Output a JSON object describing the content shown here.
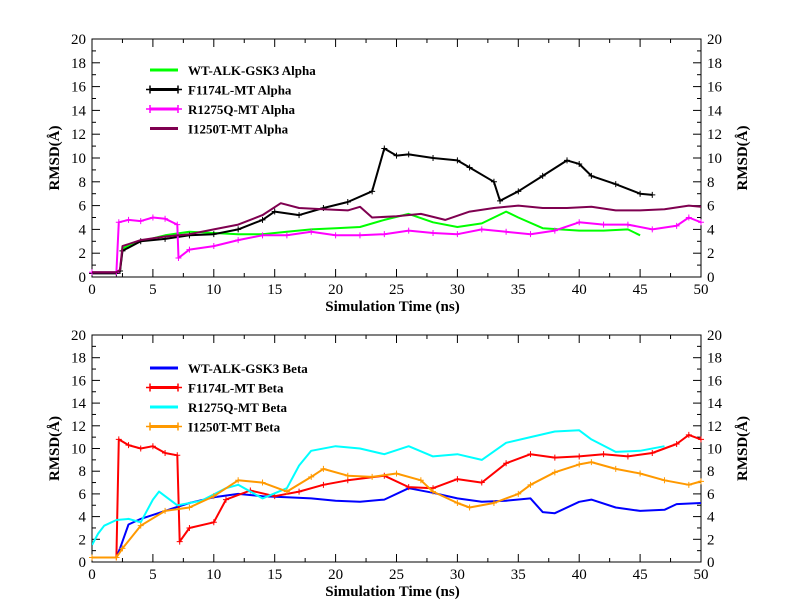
{
  "chart_data": [
    {
      "type": "line",
      "xlabel": "Simulation Time (ns)",
      "ylabel": "RMSD(Å)",
      "ylabel_right": "RMSD(Å)",
      "xlim": [
        0,
        50
      ],
      "ylim": [
        0,
        20
      ],
      "xticks": [
        0,
        5,
        10,
        15,
        20,
        25,
        30,
        35,
        40,
        45,
        50
      ],
      "yticks": [
        0,
        2,
        4,
        6,
        8,
        10,
        12,
        14,
        16,
        18,
        20
      ],
      "grid": false,
      "legend_position": "top-left",
      "series": [
        {
          "name": "WT-ALK-GSK3 Alpha",
          "color": "#00ff00",
          "marker": "none",
          "points": [
            [
              0,
              0.4
            ],
            [
              2,
              0.4
            ],
            [
              2.3,
              0.5
            ],
            [
              2.5,
              2.4
            ],
            [
              4,
              3.0
            ],
            [
              6,
              3.5
            ],
            [
              8,
              3.8
            ],
            [
              10,
              3.7
            ],
            [
              12,
              3.6
            ],
            [
              14,
              3.6
            ],
            [
              16,
              3.8
            ],
            [
              18,
              4.0
            ],
            [
              20,
              4.1
            ],
            [
              22,
              4.2
            ],
            [
              24,
              4.8
            ],
            [
              26,
              5.3
            ],
            [
              28,
              4.6
            ],
            [
              30,
              4.2
            ],
            [
              32,
              4.5
            ],
            [
              34,
              5.5
            ],
            [
              35,
              5.0
            ],
            [
              37,
              4.1
            ],
            [
              40,
              3.9
            ],
            [
              42,
              3.9
            ],
            [
              44,
              4.0
            ],
            [
              45,
              3.5
            ]
          ]
        },
        {
          "name": "F1174L-MT Alpha",
          "color": "#000000",
          "marker": "+",
          "points": [
            [
              0,
              0.3
            ],
            [
              2,
              0.3
            ],
            [
              2.3,
              0.5
            ],
            [
              2.5,
              2.2
            ],
            [
              4,
              3.0
            ],
            [
              6,
              3.2
            ],
            [
              8,
              3.5
            ],
            [
              10,
              3.6
            ],
            [
              12,
              4.0
            ],
            [
              14,
              4.8
            ],
            [
              15,
              5.5
            ],
            [
              17,
              5.2
            ],
            [
              19,
              5.8
            ],
            [
              21,
              6.3
            ],
            [
              23,
              7.2
            ],
            [
              24,
              10.8
            ],
            [
              25,
              10.2
            ],
            [
              26,
              10.3
            ],
            [
              28,
              10.0
            ],
            [
              30,
              9.8
            ],
            [
              31,
              9.2
            ],
            [
              33,
              8.0
            ],
            [
              33.5,
              6.4
            ],
            [
              35,
              7.2
            ],
            [
              37,
              8.5
            ],
            [
              39,
              9.8
            ],
            [
              40,
              9.5
            ],
            [
              41,
              8.5
            ],
            [
              43,
              7.8
            ],
            [
              45,
              7.0
            ],
            [
              46,
              6.9
            ]
          ]
        },
        {
          "name": "R1275Q-MT Alpha",
          "color": "#ff00ff",
          "marker": "+",
          "points": [
            [
              0,
              0.4
            ],
            [
              2,
              0.4
            ],
            [
              2.2,
              4.6
            ],
            [
              3,
              4.8
            ],
            [
              4,
              4.7
            ],
            [
              5,
              5.0
            ],
            [
              6,
              4.9
            ],
            [
              7,
              4.4
            ],
            [
              7.1,
              1.6
            ],
            [
              8,
              2.3
            ],
            [
              10,
              2.6
            ],
            [
              12,
              3.1
            ],
            [
              14,
              3.5
            ],
            [
              16,
              3.5
            ],
            [
              18,
              3.8
            ],
            [
              20,
              3.5
            ],
            [
              22,
              3.5
            ],
            [
              24,
              3.6
            ],
            [
              26,
              3.9
            ],
            [
              28,
              3.7
            ],
            [
              30,
              3.6
            ],
            [
              32,
              4.0
            ],
            [
              34,
              3.8
            ],
            [
              36,
              3.6
            ],
            [
              38,
              3.9
            ],
            [
              40,
              4.6
            ],
            [
              42,
              4.4
            ],
            [
              44,
              4.4
            ],
            [
              46,
              4.0
            ],
            [
              48,
              4.3
            ],
            [
              49,
              5.0
            ],
            [
              50,
              4.6
            ]
          ]
        },
        {
          "name": "I1250T-MT Alpha",
          "color": "#7f0050",
          "marker": "none",
          "points": [
            [
              0,
              0.4
            ],
            [
              2,
              0.4
            ],
            [
              2.3,
              0.6
            ],
            [
              2.5,
              2.6
            ],
            [
              4,
              3.1
            ],
            [
              6,
              3.4
            ],
            [
              8,
              3.6
            ],
            [
              10,
              4.0
            ],
            [
              12,
              4.4
            ],
            [
              14,
              5.2
            ],
            [
              15.5,
              6.2
            ],
            [
              17,
              5.8
            ],
            [
              19,
              5.7
            ],
            [
              21,
              5.6
            ],
            [
              22,
              5.9
            ],
            [
              23,
              5.0
            ],
            [
              25,
              5.1
            ],
            [
              27,
              5.3
            ],
            [
              29,
              4.8
            ],
            [
              31,
              5.5
            ],
            [
              33,
              5.8
            ],
            [
              35,
              6.0
            ],
            [
              37,
              5.8
            ],
            [
              39,
              5.8
            ],
            [
              41,
              5.9
            ],
            [
              43,
              5.6
            ],
            [
              45,
              5.6
            ],
            [
              47,
              5.7
            ],
            [
              49,
              6.0
            ],
            [
              50,
              5.9
            ]
          ]
        }
      ]
    },
    {
      "type": "line",
      "xlabel": "Simulation Time (ns)",
      "ylabel": "RMSD(Å)",
      "ylabel_right": "RMSD(Å)",
      "xlim": [
        0,
        50
      ],
      "ylim": [
        0,
        20
      ],
      "xticks": [
        0,
        5,
        10,
        15,
        20,
        25,
        30,
        35,
        40,
        45,
        50
      ],
      "yticks": [
        0,
        2,
        4,
        6,
        8,
        10,
        12,
        14,
        16,
        18,
        20
      ],
      "grid": false,
      "legend_position": "top-left",
      "series": [
        {
          "name": "WT-ALK-GSK3 Beta",
          "color": "#0000ff",
          "marker": "none",
          "points": [
            [
              0,
              0.4
            ],
            [
              2,
              0.4
            ],
            [
              2.3,
              1.2
            ],
            [
              3,
              3.3
            ],
            [
              4,
              3.8
            ],
            [
              6,
              4.5
            ],
            [
              8,
              5.2
            ],
            [
              10,
              5.7
            ],
            [
              12,
              6.0
            ],
            [
              14,
              5.8
            ],
            [
              16,
              5.7
            ],
            [
              18,
              5.6
            ],
            [
              20,
              5.4
            ],
            [
              22,
              5.3
            ],
            [
              24,
              5.5
            ],
            [
              26,
              6.5
            ],
            [
              28,
              6.1
            ],
            [
              30,
              5.6
            ],
            [
              32,
              5.3
            ],
            [
              34,
              5.4
            ],
            [
              36,
              5.6
            ],
            [
              37,
              4.4
            ],
            [
              38,
              4.3
            ],
            [
              40,
              5.3
            ],
            [
              41,
              5.5
            ],
            [
              43,
              4.8
            ],
            [
              45,
              4.5
            ],
            [
              47,
              4.6
            ],
            [
              48,
              5.1
            ],
            [
              50,
              5.2
            ]
          ]
        },
        {
          "name": "F1174L-MT Beta",
          "color": "#ff0000",
          "marker": "+",
          "points": [
            [
              0,
              0.4
            ],
            [
              2,
              0.4
            ],
            [
              2.2,
              10.8
            ],
            [
              3,
              10.3
            ],
            [
              4,
              10.0
            ],
            [
              5,
              10.2
            ],
            [
              6,
              9.6
            ],
            [
              7,
              9.4
            ],
            [
              7.2,
              1.8
            ],
            [
              8,
              3.0
            ],
            [
              10,
              3.5
            ],
            [
              11,
              5.5
            ],
            [
              13,
              6.3
            ],
            [
              15,
              5.8
            ],
            [
              17,
              6.2
            ],
            [
              19,
              6.8
            ],
            [
              21,
              7.2
            ],
            [
              24,
              7.6
            ],
            [
              26,
              6.6
            ],
            [
              28,
              6.5
            ],
            [
              30,
              7.3
            ],
            [
              32,
              7.0
            ],
            [
              34,
              8.7
            ],
            [
              36,
              9.5
            ],
            [
              38,
              9.2
            ],
            [
              40,
              9.3
            ],
            [
              42,
              9.5
            ],
            [
              44,
              9.3
            ],
            [
              46,
              9.6
            ],
            [
              48,
              10.4
            ],
            [
              49,
              11.2
            ],
            [
              50,
              10.8
            ]
          ]
        },
        {
          "name": "R1275Q-MT Beta",
          "color": "#00ffff",
          "marker": "none",
          "points": [
            [
              0,
              1.5
            ],
            [
              0.5,
              2.5
            ],
            [
              1,
              3.2
            ],
            [
              2,
              3.7
            ],
            [
              3,
              3.8
            ],
            [
              4,
              3.5
            ],
            [
              5,
              5.5
            ],
            [
              5.5,
              6.2
            ],
            [
              7,
              5.0
            ],
            [
              9,
              5.4
            ],
            [
              11,
              6.5
            ],
            [
              12,
              6.8
            ],
            [
              14,
              5.6
            ],
            [
              16,
              6.5
            ],
            [
              17,
              8.5
            ],
            [
              18,
              9.8
            ],
            [
              20,
              10.2
            ],
            [
              22,
              10.0
            ],
            [
              24,
              9.5
            ],
            [
              26,
              10.2
            ],
            [
              28,
              9.3
            ],
            [
              30,
              9.5
            ],
            [
              32,
              9.0
            ],
            [
              34,
              10.5
            ],
            [
              36,
              11.0
            ],
            [
              38,
              11.5
            ],
            [
              40,
              11.6
            ],
            [
              41,
              10.8
            ],
            [
              43,
              9.7
            ],
            [
              45,
              9.8
            ],
            [
              47,
              10.2
            ]
          ]
        },
        {
          "name": "I1250T-MT Beta",
          "color": "#ff9900",
          "marker": "+",
          "points": [
            [
              0,
              0.4
            ],
            [
              2,
              0.4
            ],
            [
              2.5,
              1.2
            ],
            [
              4,
              3.2
            ],
            [
              6,
              4.5
            ],
            [
              8,
              4.8
            ],
            [
              10,
              5.8
            ],
            [
              12,
              7.2
            ],
            [
              14,
              7.0
            ],
            [
              16,
              6.2
            ],
            [
              18,
              7.5
            ],
            [
              19,
              8.2
            ],
            [
              21,
              7.6
            ],
            [
              23,
              7.5
            ],
            [
              25,
              7.8
            ],
            [
              27,
              7.2
            ],
            [
              28,
              6.2
            ],
            [
              30,
              5.2
            ],
            [
              31,
              4.8
            ],
            [
              33,
              5.2
            ],
            [
              35,
              6.0
            ],
            [
              36,
              6.8
            ],
            [
              38,
              7.9
            ],
            [
              40,
              8.6
            ],
            [
              41,
              8.8
            ],
            [
              43,
              8.2
            ],
            [
              45,
              7.8
            ],
            [
              47,
              7.2
            ],
            [
              49,
              6.8
            ],
            [
              50,
              7.1
            ]
          ]
        }
      ]
    }
  ]
}
